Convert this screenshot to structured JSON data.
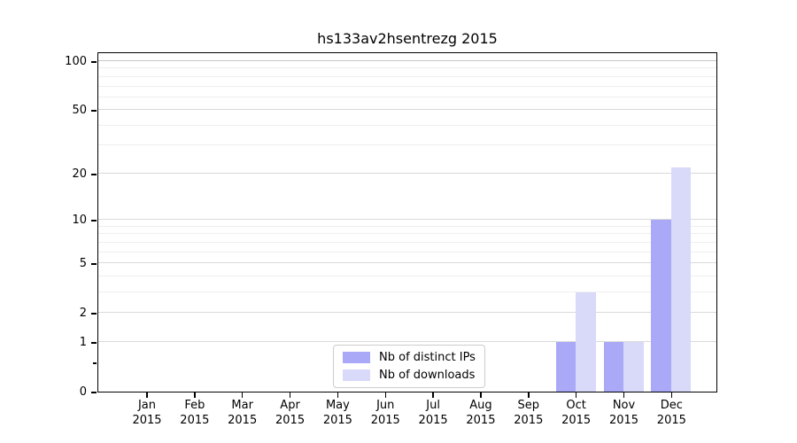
{
  "figure": {
    "background": "#ffffff"
  },
  "chart_data": {
    "type": "bar",
    "title": "hs133av2hsentrezg 2015",
    "categories": [
      {
        "month": "Jan",
        "year": "2015"
      },
      {
        "month": "Feb",
        "year": "2015"
      },
      {
        "month": "Mar",
        "year": "2015"
      },
      {
        "month": "Apr",
        "year": "2015"
      },
      {
        "month": "May",
        "year": "2015"
      },
      {
        "month": "Jun",
        "year": "2015"
      },
      {
        "month": "Jul",
        "year": "2015"
      },
      {
        "month": "Aug",
        "year": "2015"
      },
      {
        "month": "Sep",
        "year": "2015"
      },
      {
        "month": "Oct",
        "year": "2015"
      },
      {
        "month": "Nov",
        "year": "2015"
      },
      {
        "month": "Dec",
        "year": "2015"
      }
    ],
    "series": [
      {
        "name": "Nb of distinct IPs",
        "color": "#a9a9f7",
        "values": [
          0,
          0,
          0,
          0,
          0,
          0,
          0,
          0,
          0,
          1,
          1,
          10
        ]
      },
      {
        "name": "Nb of downloads",
        "color": "#d9d9f9",
        "values": [
          0,
          0,
          0,
          0,
          0,
          0,
          0,
          0,
          0,
          3,
          1,
          22
        ]
      }
    ],
    "xlabel": "",
    "ylabel": "",
    "y_scale": "log1p",
    "ylim": [
      0,
      116
    ],
    "yticks": [
      0,
      1,
      2,
      5,
      10,
      20,
      50,
      100
    ],
    "y_minor_gridlines": [
      3,
      4,
      6,
      7,
      8,
      9,
      30,
      40,
      60,
      70,
      80,
      90
    ],
    "y_minor_axis_ticks": [
      0.5
    ],
    "grid": {
      "major_color": "#dadada",
      "minor_color": "#efefef",
      "top_line_color": "#c6c6c6"
    },
    "legend": {
      "position": "lower center"
    }
  }
}
